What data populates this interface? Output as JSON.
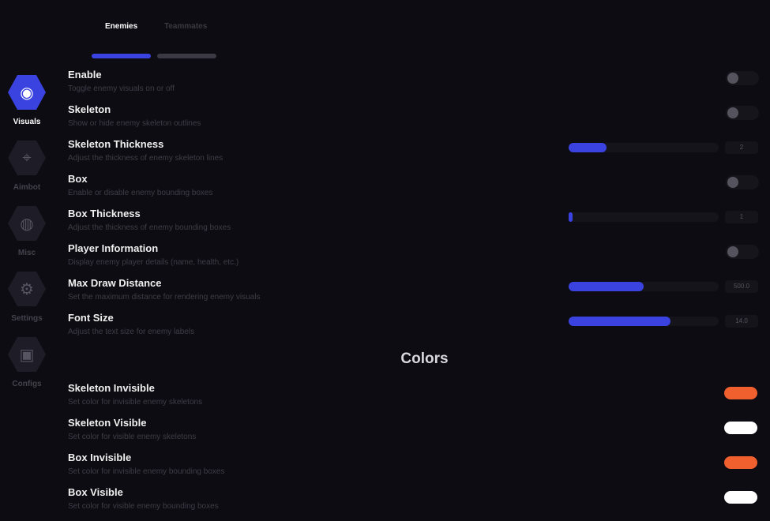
{
  "tabs": [
    {
      "label": "Enemies",
      "active": true
    },
    {
      "label": "Teammates",
      "active": false
    }
  ],
  "nav": [
    {
      "label": "Visuals",
      "icon": "eye-icon",
      "active": true
    },
    {
      "label": "Aimbot",
      "icon": "crosshair-icon"
    },
    {
      "label": "Misc",
      "icon": "globe-icon"
    },
    {
      "label": "Settings",
      "icon": "gear-icon"
    },
    {
      "label": "Configs",
      "icon": "save-icon"
    }
  ],
  "settings": [
    {
      "title": "Enable",
      "desc": "Toggle enemy visuals on or off",
      "type": "toggle",
      "on": false
    },
    {
      "title": "Skeleton",
      "desc": "Show or hide enemy skeleton outlines",
      "type": "toggle",
      "on": false
    },
    {
      "title": "Skeleton Thickness",
      "desc": "Adjust the thickness of enemy skeleton lines",
      "type": "slider",
      "value": "2",
      "fill_percent": 25
    },
    {
      "title": "Box",
      "desc": "Enable or disable enemy bounding boxes",
      "type": "toggle",
      "on": false
    },
    {
      "title": "Box Thickness",
      "desc": "Adjust the thickness of enemy bounding boxes",
      "type": "slider",
      "value": "1",
      "fill_percent": 2
    },
    {
      "title": "Player Information",
      "desc": "Display enemy player details (name, health, etc.)",
      "type": "toggle",
      "on": false
    },
    {
      "title": "Max Draw Distance",
      "desc": "Set the maximum distance for rendering enemy visuals",
      "type": "slider",
      "value": "500.0",
      "fill_percent": 50
    },
    {
      "title": "Font Size",
      "desc": "Adjust the text size for enemy labels",
      "type": "slider",
      "value": "14.0",
      "fill_percent": 68
    }
  ],
  "colors_heading": "Colors",
  "colors": [
    {
      "title": "Skeleton Invisible",
      "desc": "Set color for invisible enemy skeletons",
      "color": "#f0602e"
    },
    {
      "title": "Skeleton Visible",
      "desc": "Set color for visible enemy skeletons",
      "color": "#ffffff"
    },
    {
      "title": "Box Invisible",
      "desc": "Set color for invisible enemy bounding boxes",
      "color": "#f0602e"
    },
    {
      "title": "Box Visible",
      "desc": "Set color for visible enemy bounding boxes",
      "color": "#ffffff"
    }
  ],
  "accent": "#3a43e0"
}
